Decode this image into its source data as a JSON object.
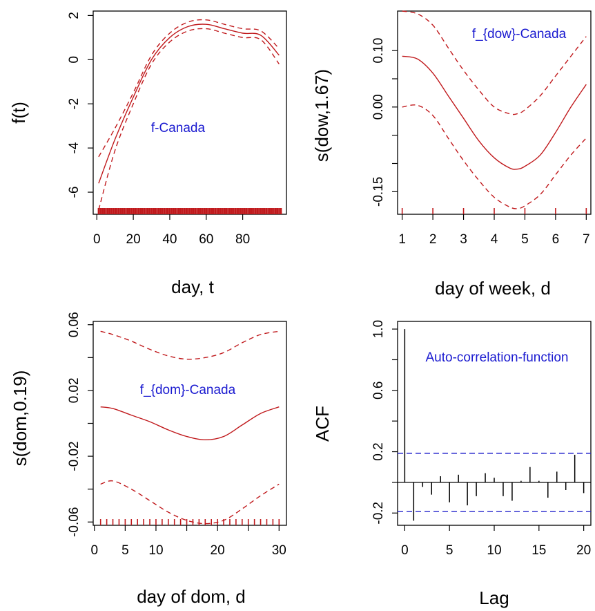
{
  "colors": {
    "curve": "#c0191c",
    "annotation": "#1a1ad0",
    "ci_line": "#2222cc",
    "axis": "#000000"
  },
  "chart_data": [
    {
      "type": "line",
      "title": "",
      "xlabel": "day, t",
      "ylabel": "f(t)",
      "annotation": "f-Canada",
      "xlim": [
        -2,
        104
      ],
      "ylim": [
        -7,
        2.2
      ],
      "xticks": [
        0,
        20,
        40,
        60,
        80
      ],
      "xtick_labels": [
        "0",
        "20",
        "40",
        "60",
        "80"
      ],
      "yticks": [
        -6,
        -4,
        -2,
        0,
        2
      ],
      "ytick_labels": [
        "-6",
        "-4",
        "-2",
        "0",
        "2"
      ],
      "rug": "dense",
      "x": [
        1,
        10,
        20,
        30,
        40,
        50,
        60,
        70,
        80,
        90,
        100
      ],
      "series": [
        {
          "style": "solid",
          "values": [
            -5.6,
            -3.6,
            -1.7,
            0.0,
            1.0,
            1.5,
            1.6,
            1.4,
            1.2,
            1.1,
            0.2
          ]
        },
        {
          "style": "dashed",
          "values": [
            -4.4,
            -3.1,
            -1.5,
            0.2,
            1.2,
            1.7,
            1.8,
            1.6,
            1.4,
            1.3,
            0.5
          ]
        },
        {
          "style": "dashed",
          "values": [
            -6.8,
            -4.1,
            -2.0,
            -0.2,
            0.8,
            1.3,
            1.4,
            1.2,
            1.0,
            0.9,
            -0.2
          ]
        }
      ]
    },
    {
      "type": "line",
      "title": "",
      "xlabel": "day of week, d",
      "ylabel": "s(dow,1.67)",
      "annotation": "f_{dow}-Canada",
      "xlim": [
        0.85,
        7.15
      ],
      "ylim": [
        -0.19,
        0.17
      ],
      "xticks": [
        1,
        2,
        3,
        4,
        5,
        6,
        7
      ],
      "xtick_labels": [
        "1",
        "2",
        "3",
        "4",
        "5",
        "6",
        "7"
      ],
      "yticks": [
        -0.15,
        -0.1,
        -0.05,
        0.0,
        0.05,
        0.1
      ],
      "ytick_labels": [
        "-0.15",
        "",
        "",
        "0.00",
        "",
        "0.10"
      ],
      "rug": "integers",
      "x": [
        1,
        1.5,
        2,
        2.5,
        3,
        3.5,
        4,
        4.5,
        4.75,
        5,
        5.5,
        6,
        6.5,
        7
      ],
      "series": [
        {
          "style": "solid",
          "values": [
            0.09,
            0.085,
            0.06,
            0.02,
            -0.02,
            -0.06,
            -0.09,
            -0.108,
            -0.11,
            -0.105,
            -0.085,
            -0.045,
            0.0,
            0.04
          ]
        },
        {
          "style": "dashed",
          "values": [
            0.17,
            0.165,
            0.145,
            0.105,
            0.065,
            0.03,
            0.0,
            -0.012,
            -0.012,
            -0.005,
            0.02,
            0.055,
            0.09,
            0.125
          ]
        },
        {
          "style": "dashed",
          "values": [
            0.0,
            0.003,
            -0.015,
            -0.055,
            -0.095,
            -0.13,
            -0.16,
            -0.177,
            -0.18,
            -0.175,
            -0.155,
            -0.12,
            -0.085,
            -0.055
          ]
        }
      ]
    },
    {
      "type": "line",
      "title": "",
      "xlabel": "day of dom, d",
      "ylabel": "s(dom,0.19)",
      "annotation": "f_{dom}-Canada",
      "xlim": [
        -0.2,
        31.2
      ],
      "ylim": [
        -0.062,
        0.062
      ],
      "xticks": [
        0,
        5,
        10,
        20,
        30
      ],
      "xtick_labels": [
        "0",
        "5",
        "10",
        "20",
        "30"
      ],
      "xticks_minor": [
        15,
        25
      ],
      "yticks": [
        -0.06,
        -0.04,
        -0.02,
        0.0,
        0.02,
        0.04,
        0.06
      ],
      "ytick_labels": [
        "-0.06",
        "",
        "-0.02",
        "",
        "0.02",
        "",
        "0.06"
      ],
      "rug": "integers",
      "x": [
        1,
        3,
        6,
        9,
        12,
        15,
        18,
        21,
        24,
        27,
        30
      ],
      "series": [
        {
          "style": "solid",
          "values": [
            0.01,
            0.009,
            0.005,
            0.001,
            -0.004,
            -0.008,
            -0.01,
            -0.008,
            -0.001,
            0.006,
            0.01
          ]
        },
        {
          "style": "dashed",
          "values": [
            0.056,
            0.054,
            0.05,
            0.045,
            0.041,
            0.039,
            0.04,
            0.043,
            0.049,
            0.054,
            0.056
          ]
        },
        {
          "style": "dashed",
          "values": [
            -0.037,
            -0.035,
            -0.04,
            -0.047,
            -0.054,
            -0.059,
            -0.061,
            -0.059,
            -0.052,
            -0.044,
            -0.037
          ]
        }
      ]
    },
    {
      "type": "bar",
      "title": "",
      "xlabel": "Lag",
      "ylabel": "ACF",
      "annotation": "Auto-correlation-function",
      "xlim": [
        -0.8,
        20.8
      ],
      "ylim": [
        -0.28,
        1.05
      ],
      "xticks": [
        0,
        5,
        10,
        15,
        20
      ],
      "xtick_labels": [
        "0",
        "5",
        "10",
        "15",
        "20"
      ],
      "yticks": [
        -0.2,
        0.0,
        0.2,
        0.4,
        0.6,
        0.8,
        1.0
      ],
      "ytick_labels": [
        "-0.2",
        "",
        "0.2",
        "",
        "0.6",
        "",
        "1.0"
      ],
      "confidence_bound": 0.19,
      "lags": [
        0,
        1,
        2,
        3,
        4,
        5,
        6,
        7,
        8,
        9,
        10,
        11,
        12,
        13,
        14,
        15,
        16,
        17,
        18,
        19,
        20
      ],
      "values": [
        1.0,
        -0.25,
        -0.03,
        -0.08,
        0.04,
        -0.13,
        0.05,
        -0.15,
        -0.09,
        0.06,
        0.03,
        -0.09,
        -0.12,
        0.01,
        0.1,
        0.01,
        -0.1,
        0.07,
        -0.05,
        0.18,
        -0.07
      ]
    }
  ]
}
